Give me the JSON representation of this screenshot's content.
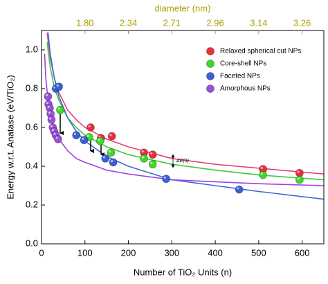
{
  "chart_data": {
    "type": "scatter",
    "x_label": "Number of TiO₂ Units (n)",
    "y_label": "Energy w.r.t. Anatase (eV/TiO₂)",
    "x2_label": "diameter (nm)",
    "annotation": "ΔE(n)",
    "xlim": [
      0,
      650
    ],
    "ylim": [
      0,
      1.1
    ],
    "xticks": [
      0,
      100,
      200,
      300,
      400,
      500,
      600
    ],
    "yticks": [
      {
        "value": 0,
        "label": "0.0"
      },
      {
        "value": 0.2,
        "label": "0.2"
      },
      {
        "value": 0.4,
        "label": "0.4"
      },
      {
        "value": 0.6,
        "label": "0.6"
      },
      {
        "value": 0.8,
        "label": "0.8"
      },
      {
        "value": 1.0,
        "label": "1.0"
      }
    ],
    "x2ticks": [
      {
        "value": 100,
        "label": "1.80"
      },
      {
        "value": 200,
        "label": "2.34"
      },
      {
        "value": 300,
        "label": "2.71"
      },
      {
        "value": 400,
        "label": "2.96"
      },
      {
        "value": 500,
        "label": "3.14"
      },
      {
        "value": 600,
        "label": "3.26"
      }
    ],
    "x2_color": "#b0a000",
    "grid": false,
    "legend": "upper right",
    "series": [
      {
        "name": "Relaxed spherical cut  NPs",
        "color": "#e8303a",
        "fit_color": "#e8407a",
        "x": [
          113,
          137,
          162,
          236,
          256,
          510,
          594
        ],
        "values": [
          0.6,
          0.545,
          0.555,
          0.47,
          0.46,
          0.385,
          0.365
        ],
        "fit_x": [
          13,
          15,
          20,
          30,
          40,
          60,
          80,
          100,
          150,
          200,
          300,
          400,
          500,
          650
        ],
        "fit_values": [
          1.09,
          1.05,
          0.96,
          0.85,
          0.78,
          0.69,
          0.64,
          0.6,
          0.54,
          0.5,
          0.44,
          0.41,
          0.39,
          0.36
        ]
      },
      {
        "name": "Core-shell  NPs",
        "color": "#44d62c",
        "fit_color": "#3cc83c",
        "x": [
          43,
          110,
          135,
          160,
          236,
          256,
          510,
          594
        ],
        "values": [
          0.69,
          0.55,
          0.53,
          0.47,
          0.44,
          0.41,
          0.355,
          0.33
        ],
        "fit_x": [
          13,
          15,
          20,
          30,
          40,
          60,
          80,
          100,
          150,
          200,
          300,
          400,
          500,
          650
        ],
        "fit_values": [
          1.04,
          1.0,
          0.91,
          0.8,
          0.74,
          0.65,
          0.6,
          0.56,
          0.5,
          0.46,
          0.41,
          0.38,
          0.355,
          0.33
        ]
      },
      {
        "name": "Faceted NPs",
        "color": "#3a5fd8",
        "fit_color": "#3a6ad8",
        "x": [
          33,
          40,
          80,
          98,
          147,
          165,
          287,
          455
        ],
        "values": [
          0.8,
          0.81,
          0.56,
          0.535,
          0.44,
          0.42,
          0.335,
          0.28
        ],
        "fit_x": [
          15,
          20,
          30,
          40,
          60,
          80,
          100,
          150,
          200,
          300,
          400,
          500,
          650
        ],
        "fit_values": [
          1.09,
          0.98,
          0.85,
          0.76,
          0.65,
          0.58,
          0.53,
          0.45,
          0.4,
          0.33,
          0.3,
          0.27,
          0.23
        ]
      },
      {
        "name": "Amorphous NPs",
        "color": "#9b4fd8",
        "fit_color": "#a040e0",
        "x": [
          15,
          16,
          19,
          21,
          23,
          26,
          29,
          33,
          38
        ],
        "values": [
          0.76,
          0.72,
          0.7,
          0.67,
          0.64,
          0.6,
          0.58,
          0.56,
          0.54
        ],
        "fit_x": [
          7,
          10,
          15,
          20,
          30,
          40,
          60,
          80,
          100,
          150,
          200,
          300,
          400,
          500,
          650
        ],
        "fit_values": [
          0.98,
          0.85,
          0.74,
          0.67,
          0.59,
          0.54,
          0.48,
          0.44,
          0.42,
          0.38,
          0.36,
          0.33,
          0.32,
          0.31,
          0.3
        ]
      }
    ]
  }
}
